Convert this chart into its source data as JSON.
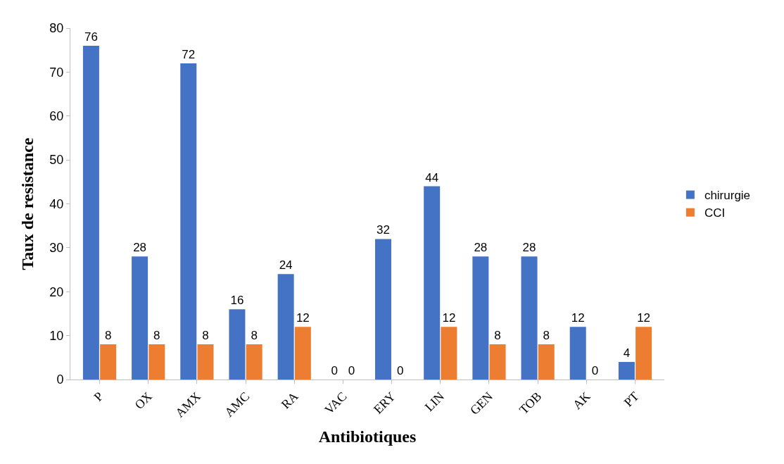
{
  "chart_data": {
    "type": "bar",
    "xlabel": "Antibiotiques",
    "ylabel": "Taux de resistance",
    "categories": [
      "P",
      "OX",
      "AMX",
      "AMC",
      "RA",
      "VAC",
      "ERY",
      "LIN",
      "GEN",
      "TOB",
      "AK",
      "PT"
    ],
    "series": [
      {
        "name": "chirurgie",
        "color": "#4472c4",
        "values": [
          76,
          28,
          72,
          16,
          24,
          0,
          32,
          44,
          28,
          28,
          12,
          4
        ]
      },
      {
        "name": "CCI",
        "color": "#ed7d31",
        "values": [
          8,
          8,
          8,
          8,
          12,
          0,
          0,
          12,
          8,
          8,
          0,
          12
        ]
      }
    ],
    "ylim": [
      0,
      80
    ],
    "yticks": [
      0,
      10,
      20,
      30,
      40,
      50,
      60,
      70,
      80
    ],
    "data_labels": true,
    "legend": "right"
  }
}
